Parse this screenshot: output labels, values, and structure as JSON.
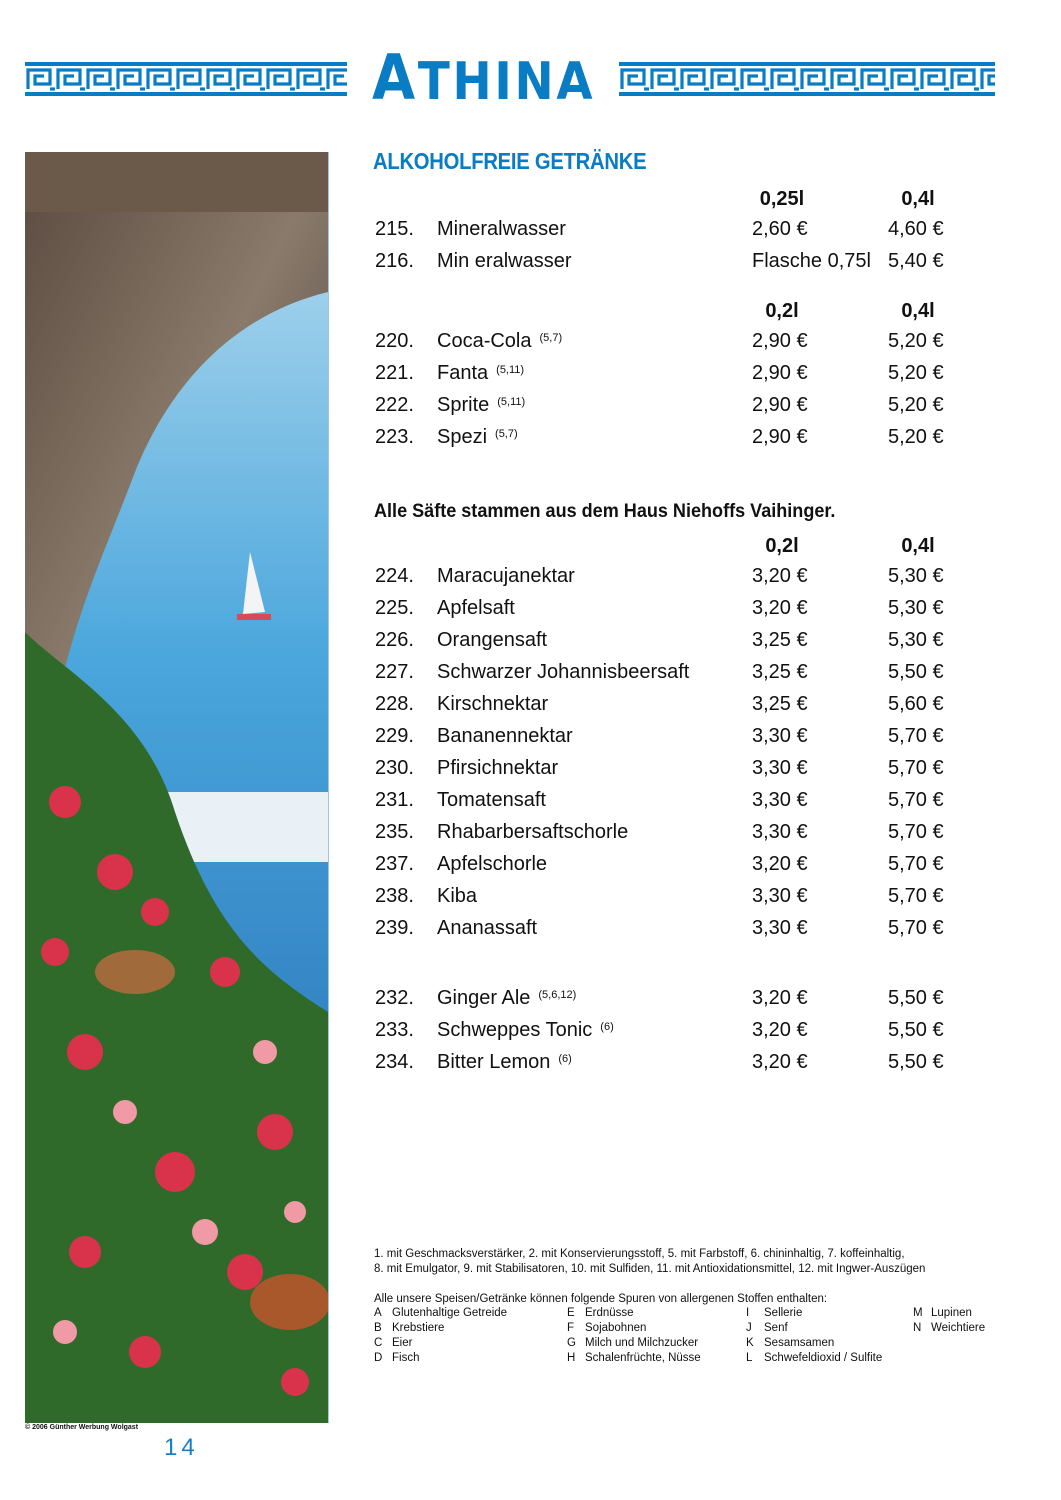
{
  "brand": {
    "logo_text": "ATHINA",
    "color": "#0a7cc4"
  },
  "section_title": "ALKOHOLFREIE GETRÄNKE",
  "groups": [
    {
      "headers": [
        "0,25l",
        "0,4l"
      ],
      "items": [
        {
          "num": "215.",
          "name": "Mineralwasser",
          "sup": "",
          "p1": "2,60 €",
          "p2": "4,60 €"
        },
        {
          "num": "216.",
          "name": "Min eralwasser",
          "sup": "",
          "p1": "Flasche 0,75l",
          "p2": "5,40 €"
        }
      ]
    },
    {
      "headers": [
        "0,2l",
        "0,4l"
      ],
      "items": [
        {
          "num": "220.",
          "name": "Coca-Cola",
          "sup": "(5,7)",
          "p1": "2,90 €",
          "p2": "5,20 €"
        },
        {
          "num": "221.",
          "name": "Fanta",
          "sup": "(5,11)",
          "p1": "2,90 €",
          "p2": "5,20 €"
        },
        {
          "num": "222.",
          "name": "Sprite",
          "sup": "(5,11)",
          "p1": "2,90 €",
          "p2": "5,20 €"
        },
        {
          "num": "223.",
          "name": "Spezi",
          "sup": "(5,7)",
          "p1": "2,90 €",
          "p2": "5,20 €"
        }
      ]
    },
    {
      "headers": [
        "0,2l",
        "0,4l"
      ],
      "items": [
        {
          "num": "224.",
          "name": "Maracujanektar",
          "sup": "",
          "p1": "3,20 €",
          "p2": "5,30 €"
        },
        {
          "num": "225.",
          "name": "Apfelsaft",
          "sup": "",
          "p1": "3,20 €",
          "p2": "5,30 €"
        },
        {
          "num": "226.",
          "name": "Orangensaft",
          "sup": "",
          "p1": "3,25 €",
          "p2": "5,30 €"
        },
        {
          "num": "227.",
          "name": "Schwarzer Johannisbeersaft",
          "sup": "",
          "p1": "3,25 €",
          "p2": "5,50 €"
        },
        {
          "num": "228.",
          "name": "Kirschnektar",
          "sup": "",
          "p1": "3,25 €",
          "p2": "5,60 €"
        },
        {
          "num": "229.",
          "name": "Bananennektar",
          "sup": "",
          "p1": "3,30 €",
          "p2": "5,70 €"
        },
        {
          "num": "230.",
          "name": "Pfirsichnektar",
          "sup": "",
          "p1": "3,30 €",
          "p2": "5,70 €"
        },
        {
          "num": "231.",
          "name": "Tomatensaft",
          "sup": "",
          "p1": "3,30 €",
          "p2": "5,70 €"
        },
        {
          "num": "235.",
          "name": "Rhabarbersaftschorle",
          "sup": "",
          "p1": "3,30 €",
          "p2": "5,70 €"
        },
        {
          "num": "237.",
          "name": "Apfelschorle",
          "sup": "",
          "p1": "3,20 €",
          "p2": "5,70 €"
        },
        {
          "num": "238.",
          "name": "Kiba",
          "sup": "",
          "p1": "3,30 €",
          "p2": "5,70 €"
        },
        {
          "num": "239.",
          "name": "Ananassaft",
          "sup": "",
          "p1": "3,30 €",
          "p2": "5,70 €"
        }
      ]
    },
    {
      "headers": [],
      "items": [
        {
          "num": "232.",
          "name": "Ginger Ale",
          "sup": "(5,6,12)",
          "p1": "3,20 €",
          "p2": "5,50 €"
        },
        {
          "num": "233.",
          "name": "Schweppes Tonic",
          "sup": "(6)",
          "p1": "3,20 €",
          "p2": "5,50 €"
        },
        {
          "num": "234.",
          "name": "Bitter Lemon",
          "sup": "(6)",
          "p1": "3,20 €",
          "p2": "5,50 €"
        }
      ]
    }
  ],
  "juice_note": "Alle Säfte stammen aus dem Haus Niehoffs Vaihinger.",
  "footnotes": [
    "1. mit Geschmacksverstärker, 2. mit Konservierungsstoff, 5. mit Farbstoff, 6. chininhaltig, 7. koffeinhaltig,",
    "8. mit Emulgator, 9. mit Stabilisatoren, 10. mit Sulfiden, 11. mit Antioxidationsmittel, 12. mit Ingwer-Auszügen"
  ],
  "allergens": {
    "title": "Alle unsere Speisen/Getränke können folgende Spuren von allergenen Stoffen enthalten:",
    "columns": [
      [
        {
          "l": "A",
          "t": "Glutenhaltige Getreide"
        },
        {
          "l": "B",
          "t": "Krebstiere"
        },
        {
          "l": "C",
          "t": "Eier"
        },
        {
          "l": "D",
          "t": "Fisch"
        }
      ],
      [
        {
          "l": "E",
          "t": "Erdnüsse"
        },
        {
          "l": "F",
          "t": "Sojabohnen"
        },
        {
          "l": "G",
          "t": "Milch und Milchzucker"
        },
        {
          "l": "H",
          "t": "Schalenfrüchte, Nüsse"
        }
      ],
      [
        {
          "l": "I",
          "t": "Sellerie"
        },
        {
          "l": "J",
          "t": "Senf"
        },
        {
          "l": "K",
          "t": "Sesamsamen"
        },
        {
          "l": "L",
          "t": "Schwefeldioxid / Sulfite"
        }
      ],
      [
        {
          "l": "M",
          "t": "Lupinen"
        },
        {
          "l": "N",
          "t": "Weichtiere"
        }
      ]
    ]
  },
  "copyright": "© 2006 Günther Werbung Wolgast",
  "page_number": "14"
}
